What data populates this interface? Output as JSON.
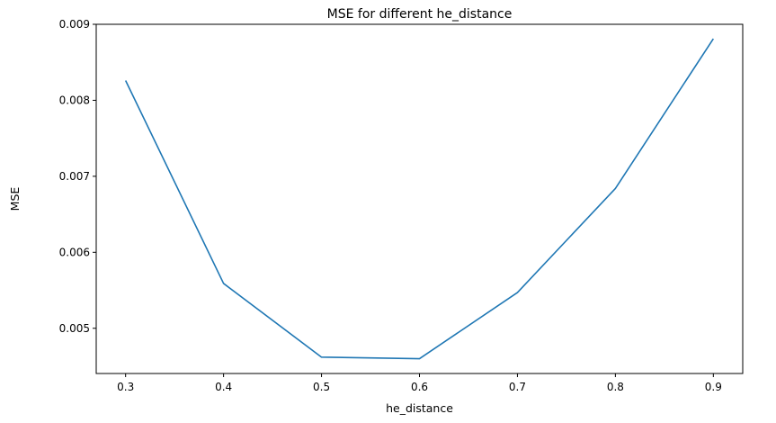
{
  "chart_data": {
    "type": "line",
    "title": "MSE for different he_distance",
    "xlabel": "he_distance",
    "ylabel": "MSE",
    "x": [
      0.3,
      0.4,
      0.5,
      0.6,
      0.7,
      0.8,
      0.9
    ],
    "series": [
      {
        "values": [
          0.00826,
          0.00559,
          0.00462,
          0.0046,
          0.00547,
          0.00684,
          0.00881
        ],
        "color": "#1f77b4"
      }
    ],
    "xlim": [
      0.27,
      0.93
    ],
    "ylim": [
      0.004405,
      0.009
    ],
    "xticks": [
      0.3,
      0.4,
      0.5,
      0.6,
      0.7,
      0.8,
      0.9
    ],
    "xtick_labels": [
      "0.3",
      "0.4",
      "0.5",
      "0.6",
      "0.7",
      "0.8",
      "0.9"
    ],
    "yticks": [
      0.005,
      0.006,
      0.007,
      0.008,
      0.009
    ],
    "ytick_labels": [
      "0.005",
      "0.006",
      "0.007",
      "0.008",
      "0.009"
    ],
    "grid": false,
    "legend": "none"
  }
}
